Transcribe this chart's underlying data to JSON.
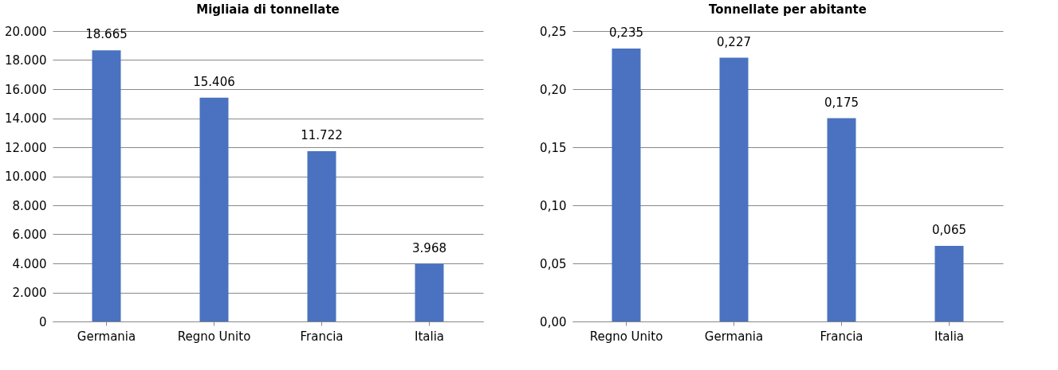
{
  "chart_data": [
    {
      "type": "bar",
      "title": "Migliaia di tonnellate",
      "categories": [
        "Germania",
        "Regno Unito",
        "Francia",
        "Italia"
      ],
      "values": [
        18665,
        15406,
        11722,
        3968
      ],
      "value_labels": [
        "18.665",
        "15.406",
        "11.722",
        "3.968"
      ],
      "color": "#4a72c0",
      "ylim": [
        0,
        20000
      ],
      "yticks": [
        {
          "value": 0,
          "label": "0"
        },
        {
          "value": 2000,
          "label": "2.000"
        },
        {
          "value": 4000,
          "label": "4.000"
        },
        {
          "value": 6000,
          "label": "6.000"
        },
        {
          "value": 8000,
          "label": "8.000"
        },
        {
          "value": 10000,
          "label": "10.000"
        },
        {
          "value": 12000,
          "label": "12.000"
        },
        {
          "value": 14000,
          "label": "14.000"
        },
        {
          "value": 16000,
          "label": "16.000"
        },
        {
          "value": 18000,
          "label": "18.000"
        },
        {
          "value": 20000,
          "label": "20.000"
        }
      ],
      "grid": "y"
    },
    {
      "type": "bar",
      "title": "Tonnellate per abitante",
      "categories": [
        "Regno Unito",
        "Germania",
        "Francia",
        "Italia"
      ],
      "values": [
        0.235,
        0.227,
        0.175,
        0.065
      ],
      "value_labels": [
        "0,235",
        "0,227",
        "0,175",
        "0,065"
      ],
      "color": "#4a72c0",
      "ylim": [
        0,
        0.25
      ],
      "yticks": [
        {
          "value": 0,
          "label": "0,00"
        },
        {
          "value": 0.05,
          "label": "0,05"
        },
        {
          "value": 0.1,
          "label": "0,10"
        },
        {
          "value": 0.15,
          "label": "0,15"
        },
        {
          "value": 0.2,
          "label": "0,20"
        },
        {
          "value": 0.25,
          "label": "0,25"
        }
      ],
      "grid": "y"
    }
  ]
}
